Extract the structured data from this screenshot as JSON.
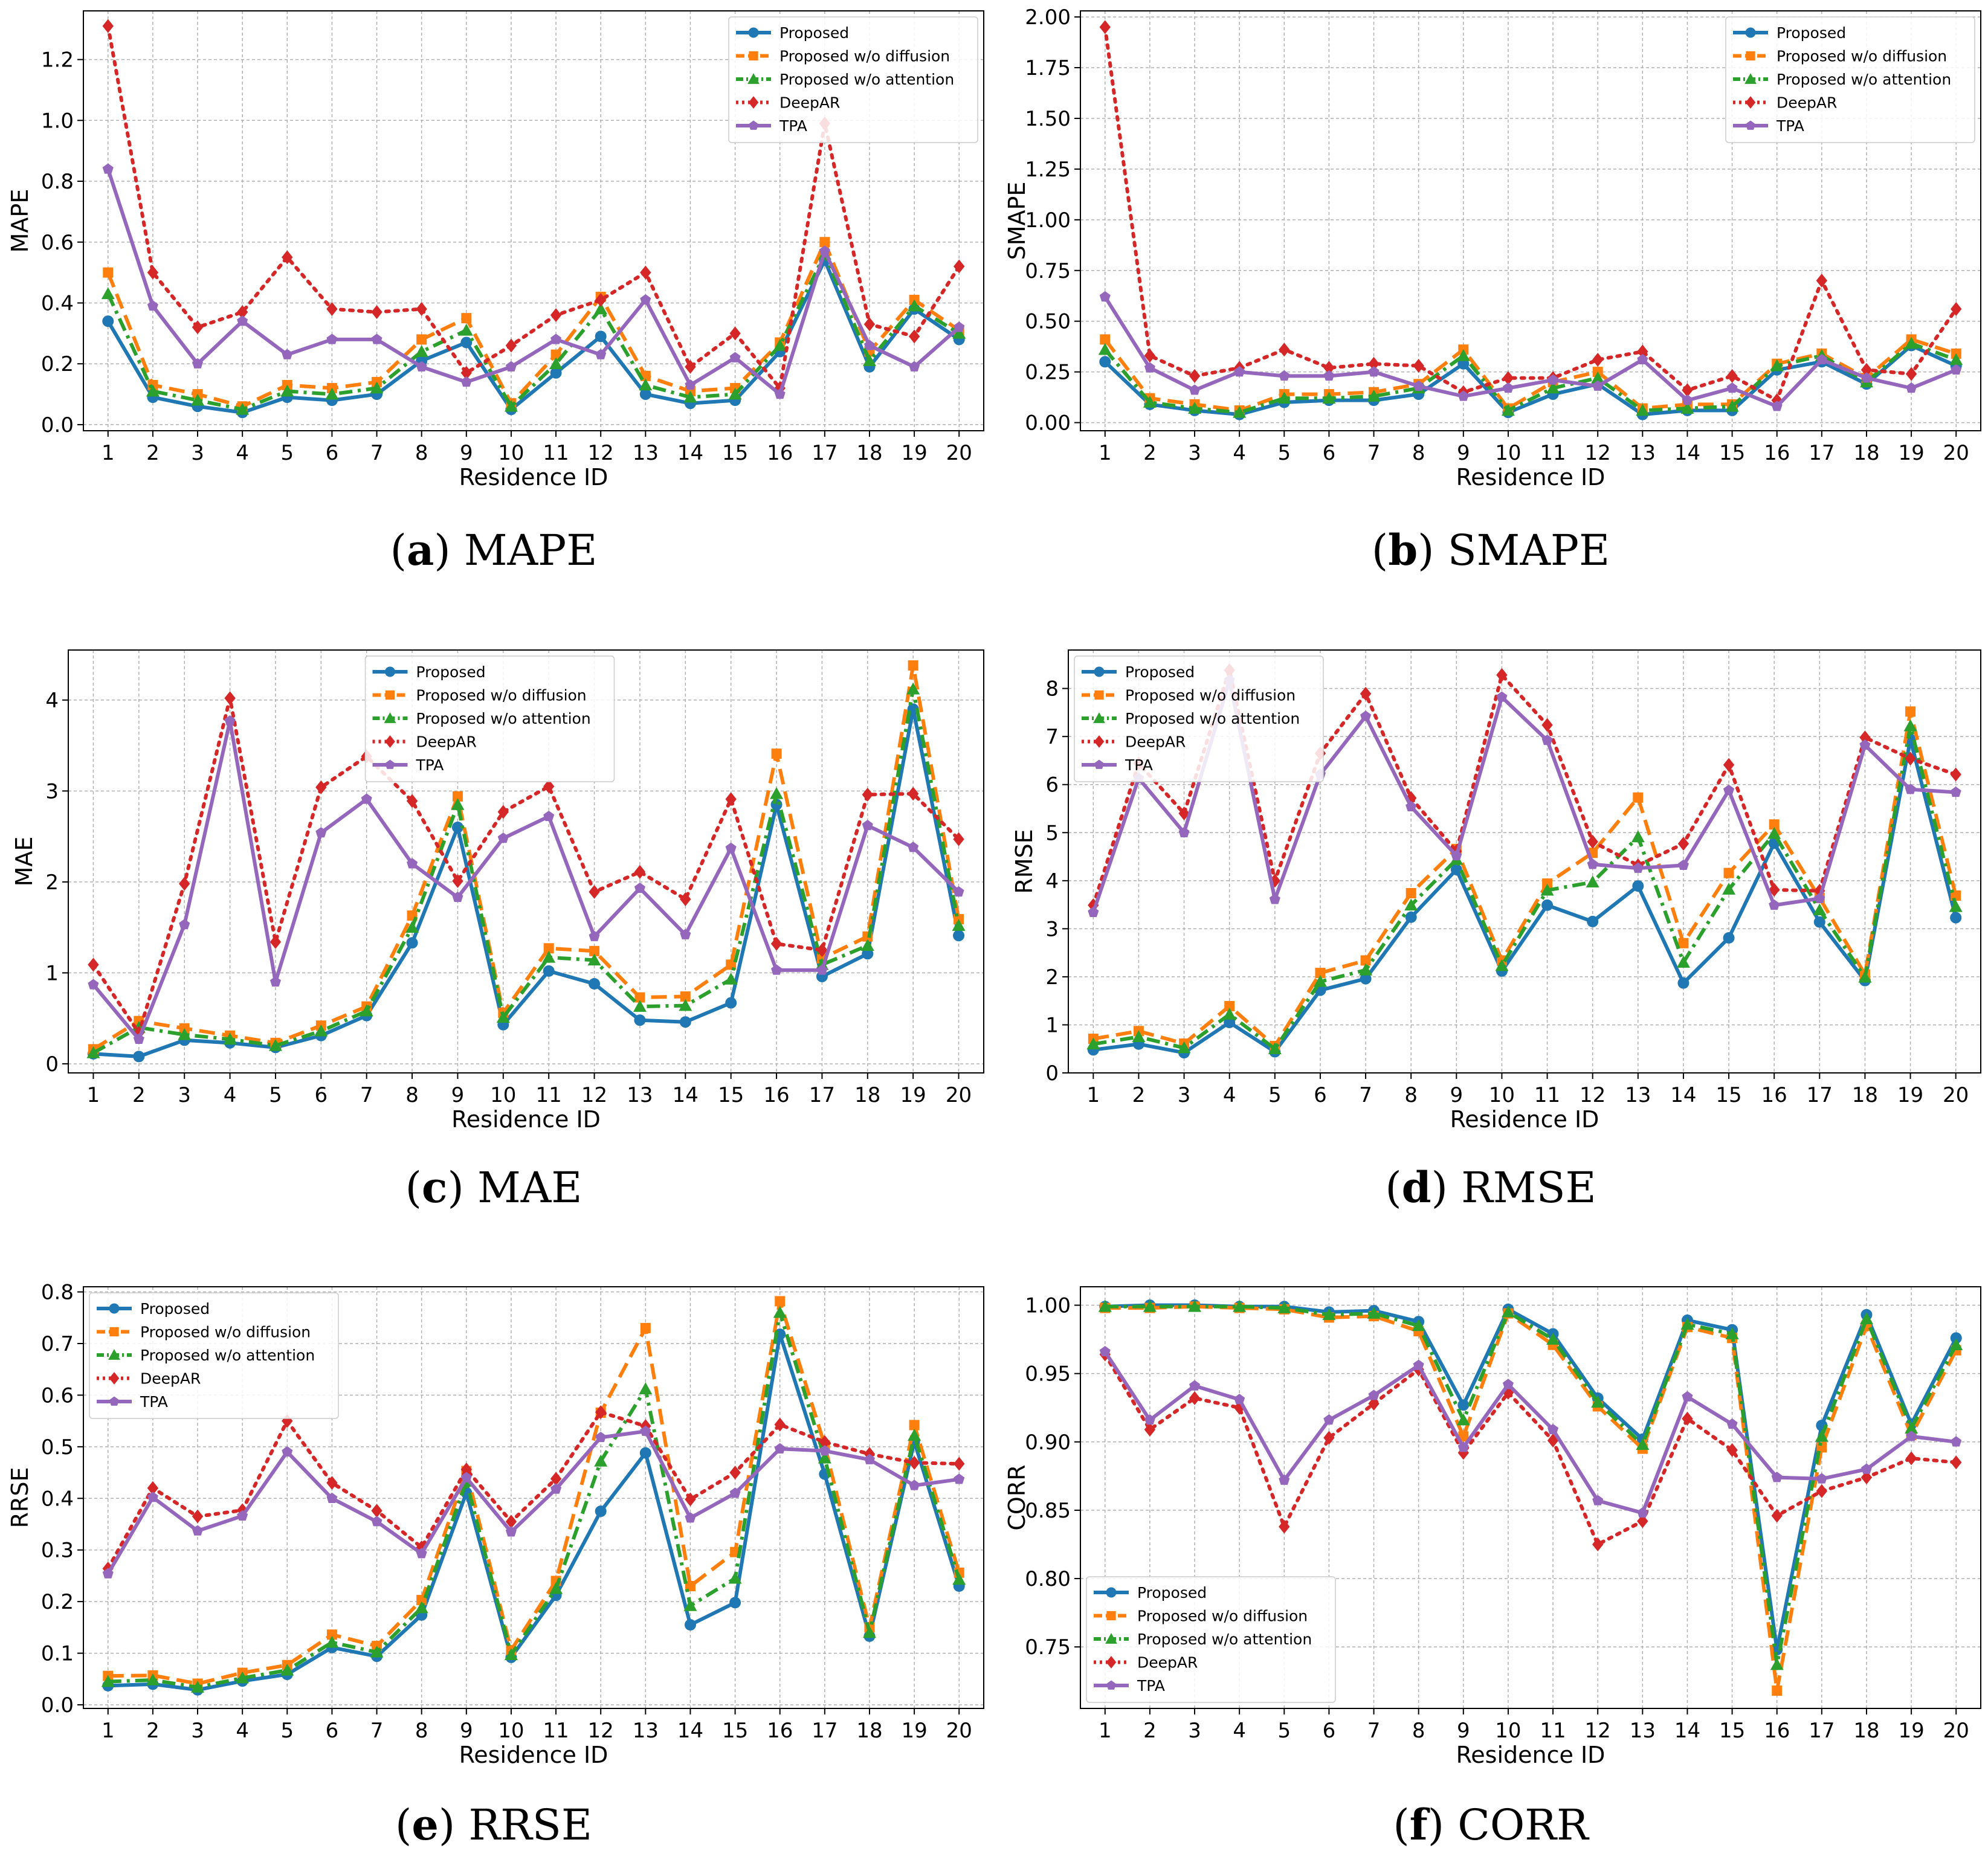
{
  "series_styles": [
    {
      "color": "#1f77b4",
      "dash": "",
      "marker": "circle"
    },
    {
      "color": "#ff7f0e",
      "dash": "26,12",
      "marker": "square"
    },
    {
      "color": "#2ca02c",
      "dash": "22,9,5,9",
      "marker": "triangle"
    },
    {
      "color": "#d62728",
      "dash": "5,10",
      "marker": "diamond"
    },
    {
      "color": "#9467bd",
      "dash": "",
      "marker": "pentagon"
    }
  ],
  "chart_data": [
    {
      "type": "line",
      "caption_letter": "a",
      "caption_text": "MAPE",
      "xlabel": "Residence ID",
      "ylabel": "MAPE",
      "x": [
        1,
        2,
        3,
        4,
        5,
        6,
        7,
        8,
        9,
        10,
        11,
        12,
        13,
        14,
        15,
        16,
        17,
        18,
        19,
        20
      ],
      "ylim": [
        -0.02,
        1.36
      ],
      "yticks": [
        0.0,
        0.2,
        0.4,
        0.6,
        0.8,
        1.0,
        1.2
      ],
      "ytick_labels": [
        "0.0",
        "0.2",
        "0.4",
        "0.6",
        "0.8",
        "1.0",
        "1.2"
      ],
      "grid": true,
      "legend": "top-right",
      "series": [
        {
          "name": "Proposed",
          "values": [
            0.34,
            0.09,
            0.06,
            0.04,
            0.09,
            0.08,
            0.1,
            0.21,
            0.27,
            0.05,
            0.17,
            0.29,
            0.1,
            0.07,
            0.08,
            0.24,
            0.54,
            0.19,
            0.38,
            0.28
          ]
        },
        {
          "name": "Proposed w/o diffusion",
          "values": [
            0.5,
            0.13,
            0.1,
            0.06,
            0.13,
            0.12,
            0.14,
            0.28,
            0.35,
            0.07,
            0.23,
            0.42,
            0.16,
            0.11,
            0.12,
            0.27,
            0.6,
            0.24,
            0.41,
            0.31
          ]
        },
        {
          "name": "Proposed w/o attention",
          "values": [
            0.43,
            0.11,
            0.08,
            0.05,
            0.11,
            0.1,
            0.12,
            0.24,
            0.31,
            0.06,
            0.2,
            0.38,
            0.13,
            0.09,
            0.1,
            0.26,
            0.56,
            0.21,
            0.39,
            0.3
          ]
        },
        {
          "name": "DeepAR",
          "values": [
            1.31,
            0.5,
            0.32,
            0.37,
            0.55,
            0.38,
            0.37,
            0.38,
            0.17,
            0.26,
            0.36,
            0.41,
            0.5,
            0.19,
            0.3,
            0.12,
            0.99,
            0.33,
            0.29,
            0.52
          ]
        },
        {
          "name": "TPA",
          "values": [
            0.84,
            0.39,
            0.2,
            0.34,
            0.23,
            0.28,
            0.28,
            0.19,
            0.14,
            0.19,
            0.28,
            0.23,
            0.41,
            0.13,
            0.22,
            0.1,
            0.57,
            0.26,
            0.19,
            0.32
          ]
        }
      ]
    },
    {
      "type": "line",
      "caption_letter": "b",
      "caption_text": "SMAPE",
      "xlabel": "Residence ID",
      "ylabel": "SMAPE",
      "x": [
        1,
        2,
        3,
        4,
        5,
        6,
        7,
        8,
        9,
        10,
        11,
        12,
        13,
        14,
        15,
        16,
        17,
        18,
        19,
        20
      ],
      "ylim": [
        -0.04,
        2.03
      ],
      "yticks": [
        0.0,
        0.25,
        0.5,
        0.75,
        1.0,
        1.25,
        1.5,
        1.75,
        2.0
      ],
      "ytick_labels": [
        "0.00",
        "0.25",
        "0.50",
        "0.75",
        "1.00",
        "1.25",
        "1.50",
        "1.75",
        "2.00"
      ],
      "grid": true,
      "legend": "top-right",
      "series": [
        {
          "name": "Proposed",
          "values": [
            0.3,
            0.09,
            0.06,
            0.04,
            0.1,
            0.11,
            0.11,
            0.14,
            0.29,
            0.05,
            0.14,
            0.19,
            0.04,
            0.06,
            0.06,
            0.26,
            0.3,
            0.19,
            0.38,
            0.28
          ]
        },
        {
          "name": "Proposed w/o diffusion",
          "values": [
            0.41,
            0.12,
            0.09,
            0.06,
            0.14,
            0.14,
            0.15,
            0.19,
            0.36,
            0.07,
            0.2,
            0.25,
            0.07,
            0.09,
            0.09,
            0.29,
            0.34,
            0.22,
            0.41,
            0.34
          ]
        },
        {
          "name": "Proposed w/o attention",
          "values": [
            0.36,
            0.1,
            0.07,
            0.05,
            0.12,
            0.12,
            0.13,
            0.17,
            0.33,
            0.06,
            0.17,
            0.22,
            0.06,
            0.07,
            0.08,
            0.28,
            0.33,
            0.2,
            0.39,
            0.31
          ]
        },
        {
          "name": "DeepAR",
          "values": [
            1.95,
            0.33,
            0.23,
            0.27,
            0.36,
            0.27,
            0.29,
            0.28,
            0.15,
            0.22,
            0.22,
            0.31,
            0.35,
            0.16,
            0.23,
            0.11,
            0.7,
            0.26,
            0.24,
            0.56
          ]
        },
        {
          "name": "TPA",
          "values": [
            0.62,
            0.27,
            0.16,
            0.25,
            0.23,
            0.23,
            0.25,
            0.18,
            0.13,
            0.17,
            0.21,
            0.18,
            0.31,
            0.11,
            0.17,
            0.08,
            0.31,
            0.22,
            0.17,
            0.26
          ]
        }
      ]
    },
    {
      "type": "line",
      "caption_letter": "c",
      "caption_text": "MAE",
      "xlabel": "Residence ID",
      "ylabel": "MAE",
      "x": [
        1,
        2,
        3,
        4,
        5,
        6,
        7,
        8,
        9,
        10,
        11,
        12,
        13,
        14,
        15,
        16,
        17,
        18,
        19,
        20
      ],
      "ylim": [
        -0.1,
        4.55
      ],
      "yticks": [
        0,
        1,
        2,
        3,
        4
      ],
      "ytick_labels": [
        "0",
        "1",
        "2",
        "3",
        "4"
      ],
      "grid": true,
      "legend": "top-center",
      "series": [
        {
          "name": "Proposed",
          "values": [
            0.11,
            0.08,
            0.26,
            0.23,
            0.18,
            0.31,
            0.53,
            1.33,
            2.6,
            0.43,
            1.02,
            0.88,
            0.48,
            0.46,
            0.67,
            2.85,
            0.96,
            1.21,
            3.9,
            1.41
          ]
        },
        {
          "name": "Proposed w/o diffusion",
          "values": [
            0.16,
            0.47,
            0.39,
            0.31,
            0.23,
            0.42,
            0.63,
            1.63,
            2.94,
            0.56,
            1.27,
            1.24,
            0.73,
            0.74,
            1.09,
            3.41,
            1.16,
            1.4,
            4.38,
            1.59
          ]
        },
        {
          "name": "Proposed w/o attention",
          "values": [
            0.12,
            0.4,
            0.32,
            0.27,
            0.2,
            0.36,
            0.58,
            1.5,
            2.85,
            0.51,
            1.17,
            1.14,
            0.63,
            0.64,
            0.93,
            2.97,
            1.09,
            1.3,
            4.12,
            1.52
          ]
        },
        {
          "name": "DeepAR",
          "values": [
            1.09,
            0.34,
            1.98,
            4.02,
            1.34,
            3.04,
            3.38,
            2.89,
            2.01,
            2.77,
            3.05,
            1.89,
            2.11,
            1.81,
            2.91,
            1.32,
            1.25,
            2.96,
            2.97,
            2.47
          ]
        },
        {
          "name": "TPA",
          "values": [
            0.87,
            0.27,
            1.53,
            3.77,
            0.9,
            2.54,
            2.91,
            2.2,
            1.83,
            2.48,
            2.72,
            1.4,
            1.93,
            1.42,
            2.37,
            1.03,
            1.03,
            2.62,
            2.38,
            1.89
          ]
        }
      ]
    },
    {
      "type": "line",
      "caption_letter": "d",
      "caption_text": "RMSE",
      "xlabel": "Residence ID",
      "ylabel": "RMSE",
      "x": [
        1,
        2,
        3,
        4,
        5,
        6,
        7,
        8,
        9,
        10,
        11,
        12,
        13,
        14,
        15,
        16,
        17,
        18,
        19,
        20
      ],
      "ylim": [
        0.0,
        8.8
      ],
      "yticks": [
        0,
        1,
        2,
        3,
        4,
        5,
        6,
        7,
        8
      ],
      "ytick_labels": [
        "0",
        "1",
        "2",
        "3",
        "4",
        "5",
        "6",
        "7",
        "8"
      ],
      "grid": true,
      "legend": "top-left",
      "series": [
        {
          "name": "Proposed",
          "values": [
            0.48,
            0.6,
            0.42,
            1.05,
            0.44,
            1.72,
            1.96,
            3.24,
            4.23,
            2.12,
            3.49,
            3.15,
            3.89,
            1.87,
            2.81,
            4.78,
            3.14,
            1.92,
            6.94,
            3.23
          ]
        },
        {
          "name": "Proposed w/o diffusion",
          "values": [
            0.71,
            0.87,
            0.61,
            1.39,
            0.56,
            2.08,
            2.34,
            3.74,
            4.66,
            2.34,
            3.94,
            4.58,
            5.73,
            2.7,
            4.16,
            5.17,
            3.64,
            2.05,
            7.52,
            3.69
          ]
        },
        {
          "name": "Proposed w/o attention",
          "values": [
            0.6,
            0.75,
            0.52,
            1.22,
            0.5,
            1.9,
            2.14,
            3.49,
            4.44,
            2.23,
            3.8,
            3.97,
            4.91,
            2.3,
            3.82,
            4.98,
            3.39,
            1.99,
            7.22,
            3.46
          ]
        },
        {
          "name": "DeepAR",
          "values": [
            3.49,
            6.44,
            5.4,
            8.38,
            4.0,
            6.65,
            7.89,
            5.72,
            4.61,
            8.28,
            7.24,
            4.81,
            4.32,
            4.77,
            6.41,
            3.81,
            3.79,
            6.98,
            6.54,
            6.21
          ]
        },
        {
          "name": "TPA",
          "values": [
            3.34,
            6.13,
            5.0,
            8.17,
            3.61,
            6.21,
            7.42,
            5.54,
            4.52,
            7.82,
            6.92,
            4.34,
            4.26,
            4.32,
            5.88,
            3.49,
            3.63,
            6.82,
            5.9,
            5.84
          ]
        }
      ]
    },
    {
      "type": "line",
      "caption_letter": "e",
      "caption_text": "RRSE",
      "xlabel": "Residence ID",
      "ylabel": "RRSE",
      "x": [
        1,
        2,
        3,
        4,
        5,
        6,
        7,
        8,
        9,
        10,
        11,
        12,
        13,
        14,
        15,
        16,
        17,
        18,
        19,
        20
      ],
      "ylim": [
        -0.007,
        0.81
      ],
      "yticks": [
        0.0,
        0.1,
        0.2,
        0.3,
        0.4,
        0.5,
        0.6,
        0.7,
        0.8
      ],
      "ytick_labels": [
        "0.0",
        "0.1",
        "0.2",
        "0.3",
        "0.4",
        "0.5",
        "0.6",
        "0.7",
        "0.8"
      ],
      "grid": true,
      "legend": "top-left",
      "series": [
        {
          "name": "Proposed",
          "values": [
            0.037,
            0.04,
            0.029,
            0.046,
            0.059,
            0.111,
            0.094,
            0.174,
            0.411,
            0.092,
            0.212,
            0.375,
            0.488,
            0.155,
            0.198,
            0.718,
            0.447,
            0.133,
            0.51,
            0.23
          ]
        },
        {
          "name": "Proposed w/o diffusion",
          "values": [
            0.056,
            0.057,
            0.041,
            0.062,
            0.077,
            0.136,
            0.114,
            0.203,
            0.453,
            0.106,
            0.24,
            0.566,
            0.73,
            0.23,
            0.296,
            0.782,
            0.503,
            0.15,
            0.542,
            0.256
          ]
        },
        {
          "name": "Proposed w/o attention",
          "values": [
            0.045,
            0.048,
            0.034,
            0.052,
            0.067,
            0.121,
            0.102,
            0.188,
            0.433,
            0.097,
            0.225,
            0.472,
            0.612,
            0.192,
            0.245,
            0.76,
            0.478,
            0.14,
            0.522,
            0.243
          ]
        },
        {
          "name": "DeepAR",
          "values": [
            0.264,
            0.42,
            0.365,
            0.377,
            0.55,
            0.43,
            0.376,
            0.305,
            0.456,
            0.355,
            0.438,
            0.567,
            0.54,
            0.398,
            0.45,
            0.543,
            0.509,
            0.486,
            0.469,
            0.467
          ]
        },
        {
          "name": "TPA",
          "values": [
            0.254,
            0.402,
            0.337,
            0.366,
            0.49,
            0.4,
            0.355,
            0.293,
            0.44,
            0.335,
            0.418,
            0.518,
            0.53,
            0.362,
            0.41,
            0.496,
            0.492,
            0.475,
            0.425,
            0.437
          ]
        }
      ]
    },
    {
      "type": "line",
      "caption_letter": "f",
      "caption_text": "CORR",
      "xlabel": "Residence ID",
      "ylabel": "CORR",
      "x": [
        1,
        2,
        3,
        4,
        5,
        6,
        7,
        8,
        9,
        10,
        11,
        12,
        13,
        14,
        15,
        16,
        17,
        18,
        19,
        20
      ],
      "ylim": [
        0.705,
        1.0135
      ],
      "yticks": [
        0.75,
        0.8,
        0.85,
        0.9,
        0.95,
        1.0
      ],
      "ytick_labels": [
        "0.75",
        "0.80",
        "0.85",
        "0.90",
        "0.95",
        "1.00"
      ],
      "grid": true,
      "legend": "bottom-left",
      "series": [
        {
          "name": "Proposed",
          "values": [
            0.999,
            1.0,
            1.0,
            0.999,
            0.999,
            0.995,
            0.996,
            0.988,
            0.927,
            0.997,
            0.979,
            0.932,
            0.902,
            0.989,
            0.982,
            0.748,
            0.912,
            0.993,
            0.913,
            0.976
          ]
        },
        {
          "name": "Proposed w/o diffusion",
          "values": [
            0.998,
            0.998,
            0.999,
            0.998,
            0.997,
            0.991,
            0.992,
            0.981,
            0.904,
            0.994,
            0.971,
            0.926,
            0.895,
            0.984,
            0.976,
            0.718,
            0.896,
            0.985,
            0.905,
            0.967
          ]
        },
        {
          "name": "Proposed w/o attention",
          "values": [
            0.999,
            0.999,
            0.999,
            0.999,
            0.998,
            0.993,
            0.994,
            0.985,
            0.916,
            0.995,
            0.975,
            0.929,
            0.898,
            0.986,
            0.979,
            0.737,
            0.904,
            0.99,
            0.91,
            0.971
          ]
        },
        {
          "name": "DeepAR",
          "values": [
            0.964,
            0.909,
            0.932,
            0.925,
            0.838,
            0.903,
            0.928,
            0.953,
            0.892,
            0.936,
            0.901,
            0.825,
            0.842,
            0.917,
            0.894,
            0.846,
            0.864,
            0.874,
            0.888,
            0.885
          ]
        },
        {
          "name": "TPA",
          "values": [
            0.966,
            0.916,
            0.941,
            0.931,
            0.872,
            0.916,
            0.934,
            0.956,
            0.896,
            0.942,
            0.909,
            0.857,
            0.848,
            0.933,
            0.913,
            0.874,
            0.873,
            0.88,
            0.904,
            0.9
          ]
        }
      ]
    }
  ]
}
